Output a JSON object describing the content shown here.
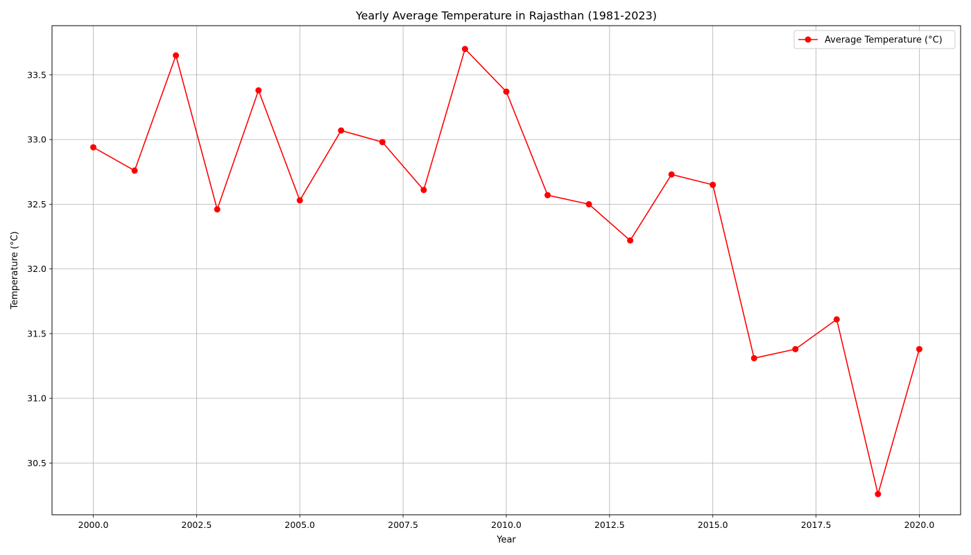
{
  "chart_data": {
    "type": "line",
    "title": "Yearly Average Temperature in Rajasthan (1981-2023)",
    "xlabel": "Year",
    "ylabel": "Temperature (°C)",
    "xlim": [
      1999.0,
      2021.0
    ],
    "ylim": [
      30.1,
      33.88
    ],
    "x_ticks": [
      2000.0,
      2002.5,
      2005.0,
      2007.5,
      2010.0,
      2012.5,
      2015.0,
      2017.5,
      2020.0
    ],
    "x_tick_labels": [
      "2000.0",
      "2002.5",
      "2005.0",
      "2007.5",
      "2010.0",
      "2012.5",
      "2015.0",
      "2017.5",
      "2020.0"
    ],
    "y_ticks": [
      30.5,
      31.0,
      31.5,
      32.0,
      32.5,
      33.0,
      33.5
    ],
    "y_tick_labels": [
      "30.5",
      "31.0",
      "31.5",
      "32.0",
      "32.5",
      "33.0",
      "33.5"
    ],
    "grid": true,
    "legend_position": "top-right",
    "series": [
      {
        "name": "Average Temperature (°C)",
        "color": "#ff0000",
        "marker": "circle",
        "x": [
          2000,
          2001,
          2002,
          2003,
          2004,
          2005,
          2006,
          2007,
          2008,
          2009,
          2010,
          2011,
          2012,
          2013,
          2014,
          2015,
          2016,
          2017,
          2018,
          2019,
          2020
        ],
        "y": [
          32.94,
          32.76,
          33.65,
          32.46,
          33.38,
          32.53,
          33.07,
          32.98,
          32.61,
          33.7,
          33.37,
          32.57,
          32.5,
          32.22,
          32.73,
          32.65,
          31.31,
          31.38,
          31.61,
          30.26,
          31.38
        ]
      }
    ]
  }
}
